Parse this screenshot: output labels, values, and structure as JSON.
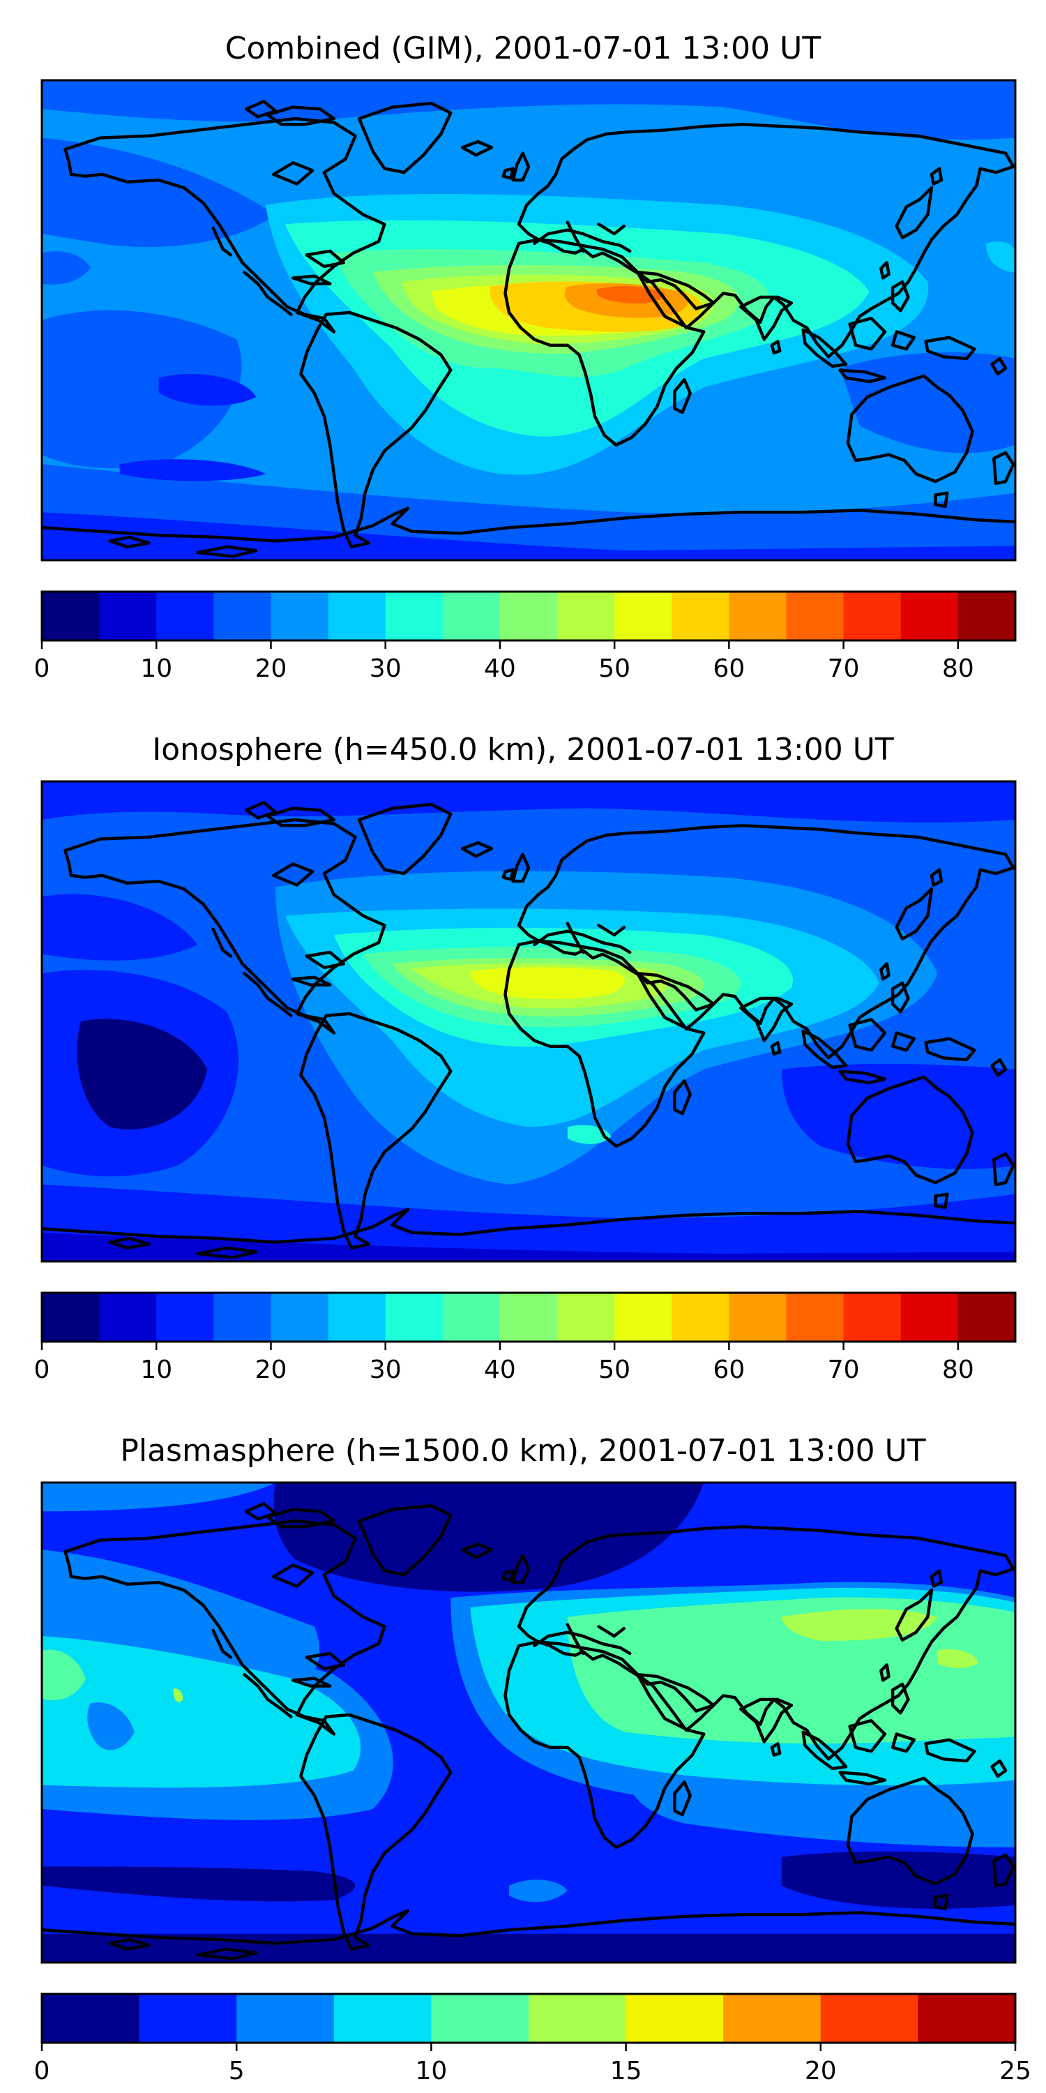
{
  "panels": [
    {
      "title": "Combined (GIM), 2001-07-01 13:00 UT",
      "colorbar": {
        "boundaries": [
          0,
          5,
          10,
          15,
          20,
          25,
          30,
          35,
          40,
          45,
          50,
          55,
          60,
          65,
          70,
          75,
          80,
          85
        ],
        "ticks": [
          0,
          10,
          20,
          30,
          40,
          50,
          60,
          70,
          80
        ]
      }
    },
    {
      "title": "Ionosphere  (h=450.0 km), 2001-07-01 13:00 UT",
      "colorbar": {
        "boundaries": [
          0,
          5,
          10,
          15,
          20,
          25,
          30,
          35,
          40,
          45,
          50,
          55,
          60,
          65,
          70,
          75,
          80,
          85
        ],
        "ticks": [
          0,
          10,
          20,
          30,
          40,
          50,
          60,
          70,
          80
        ]
      }
    },
    {
      "title": "Plasmasphere (h=1500.0 km), 2001-07-01 13:00 UT",
      "colorbar": {
        "boundaries": [
          0,
          2.5,
          5,
          7.5,
          10,
          12.5,
          15,
          17.5,
          20,
          22.5,
          25
        ],
        "ticks": [
          0,
          5,
          10,
          15,
          20,
          25
        ]
      }
    }
  ],
  "colors": {
    "jet17": [
      "#00007f",
      "#0000d1",
      "#0020ff",
      "#005cff",
      "#0094ff",
      "#00ccff",
      "#1dffd9",
      "#4fffa7",
      "#85ff71",
      "#b4ff42",
      "#e7ff0f",
      "#ffd200",
      "#ff9c00",
      "#ff6400",
      "#ff2d00",
      "#e00000",
      "#9a0000"
    ],
    "jet10": [
      "#00008f",
      "#0020ff",
      "#0082ff",
      "#00e0f4",
      "#53ffa3",
      "#a8ff4e",
      "#f4f400",
      "#ff9a00",
      "#ff3b00",
      "#b40000"
    ]
  }
}
